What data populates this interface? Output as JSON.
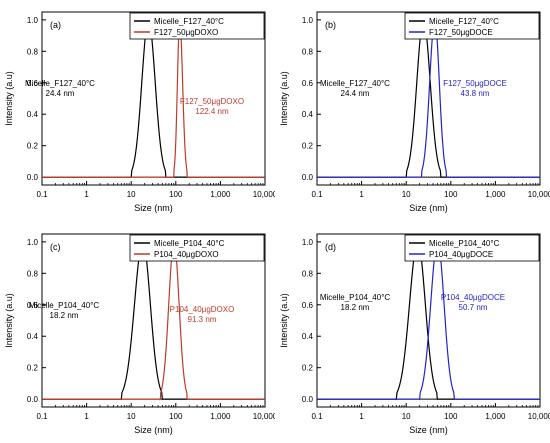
{
  "chart_data": [
    {
      "type": "line",
      "panel_label": "(a)",
      "xlabel": "Size (nm)",
      "ylabel": "Intensity (a.u)",
      "x_scale": "log",
      "xlim": [
        0.1,
        10000
      ],
      "ylim": [
        -0.05,
        1.05
      ],
      "x_ticks": [
        "0.1",
        "1",
        "10",
        "100",
        "1,000",
        "10,000"
      ],
      "y_ticks": [
        "0.0",
        "0.2",
        "0.4",
        "0.6",
        "0.8",
        "1.0"
      ],
      "legend_position": "top-right",
      "series": [
        {
          "name": "Micelle_F127_40°C",
          "color": "#000000",
          "peak": 24.4,
          "x_start": 10,
          "x_end": 60
        },
        {
          "name": "F127_50μgDOXO",
          "color": "#c0392b",
          "peak": 122.4,
          "x_start": 90,
          "x_end": 180
        }
      ],
      "annotations": [
        {
          "lines": [
            "Micelle_F127_40°C",
            "24.4 nm"
          ],
          "color": "#000000"
        },
        {
          "lines": [
            "F127_50μgDOXO",
            "122.4 nm"
          ],
          "color": "#c0392b"
        }
      ]
    },
    {
      "type": "line",
      "panel_label": "(b)",
      "xlabel": "Size (nm)",
      "ylabel": "Intensity (a.u)",
      "x_scale": "log",
      "xlim": [
        0.1,
        10000
      ],
      "ylim": [
        -0.05,
        1.05
      ],
      "x_ticks": [
        "0.1",
        "1",
        "10",
        "100",
        "1,000",
        "10,000"
      ],
      "y_ticks": [
        "0.0",
        "0.2",
        "0.4",
        "0.6",
        "0.8",
        "1.0"
      ],
      "legend_position": "top-right",
      "series": [
        {
          "name": "Micelle_F127_40°C",
          "color": "#000000",
          "peak": 24.4,
          "x_start": 10,
          "x_end": 60
        },
        {
          "name": "F127_50μgDOCE",
          "color": "#2424c8",
          "peak": 43.8,
          "x_start": 22,
          "x_end": 80
        }
      ],
      "annotations": [
        {
          "lines": [
            "Micelle_F127_40°C",
            "24.4 nm"
          ],
          "color": "#000000"
        },
        {
          "lines": [
            "F127_50μgDOCE",
            "43.8 nm"
          ],
          "color": "#2424c8"
        }
      ]
    },
    {
      "type": "line",
      "panel_label": "(c)",
      "xlabel": "Size (nm)",
      "ylabel": "Intensity (a.u)",
      "x_scale": "log",
      "xlim": [
        0.1,
        10000
      ],
      "ylim": [
        -0.05,
        1.05
      ],
      "x_ticks": [
        "0.1",
        "1",
        "10",
        "100",
        "1,000",
        "10,000"
      ],
      "y_ticks": [
        "0.0",
        "0.2",
        "0.4",
        "0.6",
        "0.8",
        "1.0"
      ],
      "legend_position": "top-right",
      "series": [
        {
          "name": "Micelle_P104_40°C",
          "color": "#000000",
          "peak": 18.2,
          "x_start": 6,
          "x_end": 50
        },
        {
          "name": "P104_40μgDOXO",
          "color": "#c0392b",
          "peak": 91.3,
          "x_start": 45,
          "x_end": 180
        }
      ],
      "annotations": [
        {
          "lines": [
            "Micelle_P104_40°C",
            "18.2 nm"
          ],
          "color": "#000000"
        },
        {
          "lines": [
            "P104_40μgDOXO",
            "91.3 nm"
          ],
          "color": "#c0392b"
        }
      ]
    },
    {
      "type": "line",
      "panel_label": "(d)",
      "xlabel": "Size (nm)",
      "ylabel": "Intensity (a.u)",
      "x_scale": "log",
      "xlim": [
        0.1,
        10000
      ],
      "ylim": [
        -0.05,
        1.05
      ],
      "x_ticks": [
        "0.1",
        "1",
        "10",
        "100",
        "1,000",
        "10,000"
      ],
      "y_ticks": [
        "0.0",
        "0.2",
        "0.4",
        "0.6",
        "0.8",
        "1.0"
      ],
      "legend_position": "top-right",
      "series": [
        {
          "name": "Micelle_P104_40°C",
          "color": "#000000",
          "peak": 18.2,
          "x_start": 6,
          "x_end": 50
        },
        {
          "name": "P104_40μgDOCE",
          "color": "#2424c8",
          "peak": 50.7,
          "x_start": 20,
          "x_end": 120
        }
      ],
      "annotations": [
        {
          "lines": [
            "Micelle_P104_40°C",
            "18.2 nm"
          ],
          "color": "#000000"
        },
        {
          "lines": [
            "P104_40μgDOCE",
            "50.7 nm"
          ],
          "color": "#2424c8"
        }
      ]
    }
  ]
}
